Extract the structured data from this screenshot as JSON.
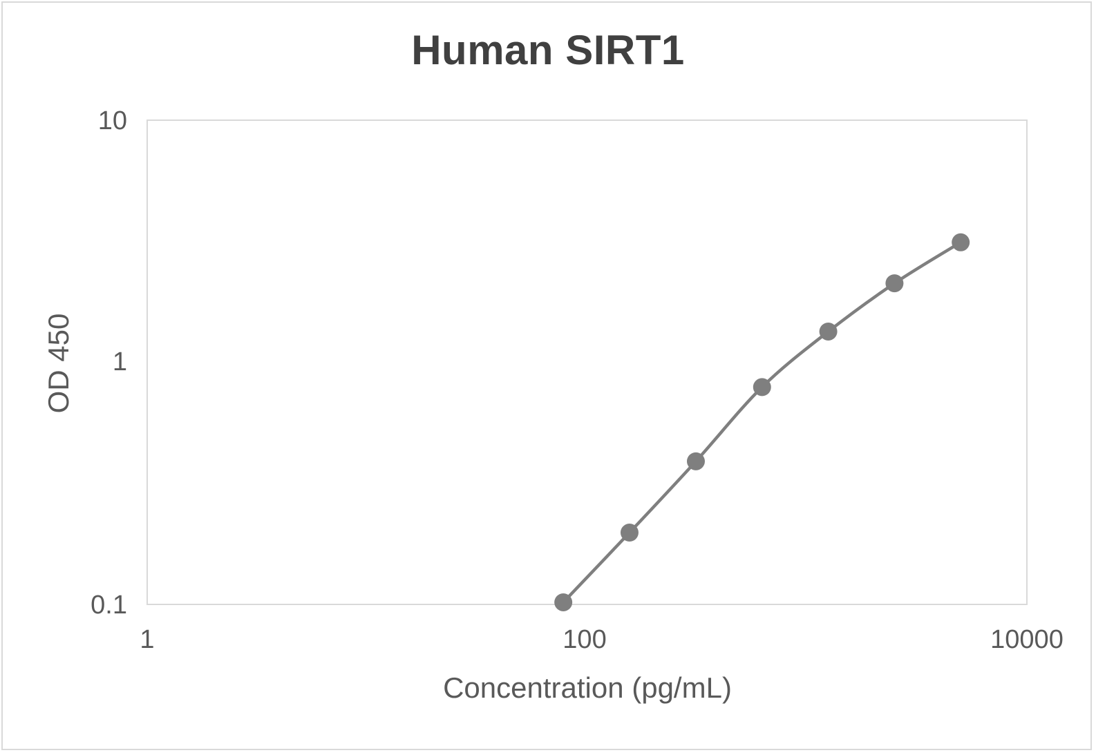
{
  "chart_data": {
    "type": "line",
    "title": "Human SIRT1",
    "xlabel": "Concentration (pg/mL)",
    "ylabel": "OD 450",
    "x_scale": "log",
    "y_scale": "log",
    "xlim": [
      1,
      10000
    ],
    "ylim": [
      0.1,
      10
    ],
    "x_ticks": [
      "1",
      "100",
      "10000"
    ],
    "y_ticks": [
      "0.1",
      "1",
      "10"
    ],
    "grid": false,
    "legend": null,
    "smooth": true,
    "marker": "circle",
    "color": "#7f7f7f",
    "series": [
      {
        "name": "Human SIRT1",
        "x": [
          78,
          156,
          312.5,
          625,
          1250,
          2500,
          5000
        ],
        "y": [
          0.102,
          0.198,
          0.39,
          0.79,
          1.34,
          2.12,
          3.13
        ]
      }
    ]
  }
}
